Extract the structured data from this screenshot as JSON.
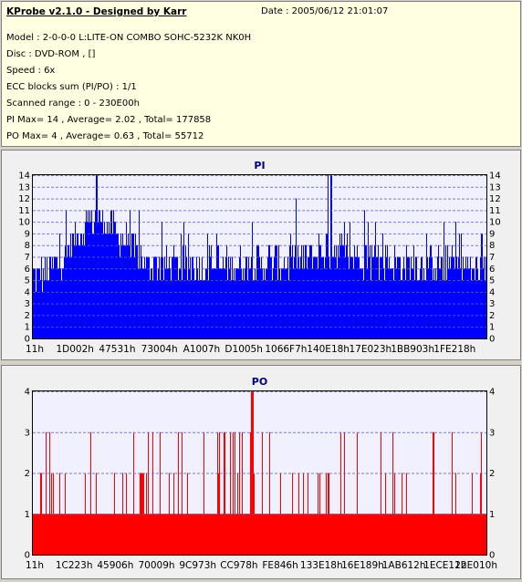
{
  "header": {
    "title": "KProbe v2.1.0 - Designed by Karr",
    "date": "Date : 2005/06/12 21:01:07",
    "lines": [
      "Model : 2-0-0-0 L:LITE-ON COMBO SOHC-5232K NK0H",
      "Disc : DVD-ROM ,  []",
      "Speed : 6x",
      "ECC blocks sum (PI/PO) : 1/1",
      "Scanned range : 0 - 230E00h",
      "PI Max= 14 , Average= 2.02 , Total= 177858",
      "PO Max= 4 , Average= 0.63 , Total= 55712"
    ]
  },
  "colors": {
    "pi": "#0000ff",
    "po": "#ff0000",
    "plot_bg": "#f0f0ff",
    "grid": "#6060c0"
  },
  "chart_data": [
    {
      "type": "bar",
      "title": "PI",
      "x_tick_labels": [
        "11h",
        "1D002h",
        "47531h",
        "73004h",
        "A1007h",
        "D1005h",
        "1066F7h",
        "140E18h",
        "17E023h",
        "1BB903h",
        "1FE218h"
      ],
      "ylim": [
        0,
        14
      ],
      "y_ticks": [
        0,
        1,
        2,
        3,
        4,
        5,
        6,
        7,
        8,
        9,
        10,
        11,
        12,
        13,
        14
      ],
      "grid": true,
      "baseline": [
        [
          0,
          5.5
        ],
        [
          0.04,
          6
        ],
        [
          0.08,
          8
        ],
        [
          0.12,
          10
        ],
        [
          0.15,
          10.5
        ],
        [
          0.2,
          8.5
        ],
        [
          0.25,
          6.5
        ],
        [
          0.3,
          6.5
        ],
        [
          0.4,
          6.5
        ],
        [
          0.5,
          6.5
        ],
        [
          0.6,
          7
        ],
        [
          0.65,
          8
        ],
        [
          0.7,
          7.5
        ],
        [
          0.75,
          7
        ],
        [
          0.8,
          6.5
        ],
        [
          0.9,
          6.5
        ],
        [
          1.0,
          6
        ]
      ],
      "max_value": 14,
      "max_positions": [
        0.14,
        0.65,
        0.657
      ]
    },
    {
      "type": "bar",
      "title": "PO",
      "x_tick_labels": [
        "11h",
        "1C223h",
        "45906h",
        "70009h",
        "9C973h",
        "CC978h",
        "FE846h",
        "133E18h",
        "16E189h",
        "1AB612h",
        "1ECE11h",
        "22E010h"
      ],
      "ylim": [
        0,
        4
      ],
      "y_ticks": [
        0,
        1,
        2,
        3,
        4
      ],
      "grid": true,
      "base_value": 1,
      "max_value": 4,
      "max_positions": [
        0.482
      ]
    }
  ]
}
